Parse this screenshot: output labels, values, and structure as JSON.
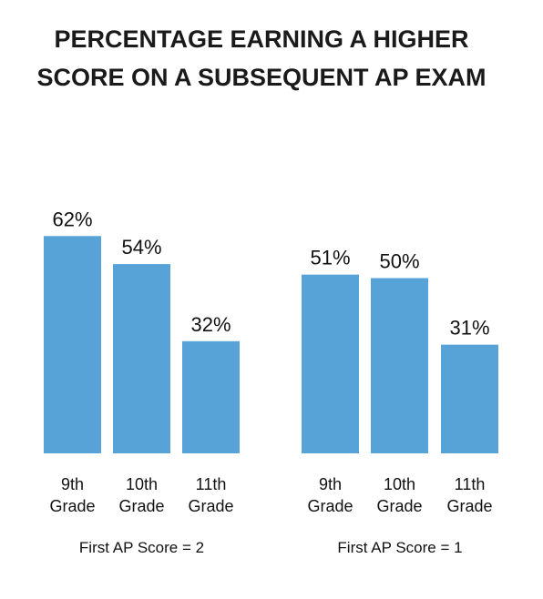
{
  "title": {
    "line1": "PERCENTAGE EARNING A HIGHER",
    "line2": "SCORE ON A SUBSEQUENT AP EXAM"
  },
  "colors": {
    "bar": "#57a3d7",
    "text": "#111111"
  },
  "chart_data": [
    {
      "type": "bar",
      "group_label": "First AP Score = 2",
      "categories": [
        "9th Grade",
        "10th Grade",
        "11th Grade"
      ],
      "values": [
        62,
        54,
        32
      ],
      "value_labels": [
        "62%",
        "54%",
        "32%"
      ],
      "ylim": [
        0,
        100
      ],
      "grid": false
    },
    {
      "type": "bar",
      "group_label": "First AP Score = 1",
      "categories": [
        "9th Grade",
        "10th Grade",
        "11th Grade"
      ],
      "values": [
        51,
        50,
        31
      ],
      "value_labels": [
        "51%",
        "50%",
        "31%"
      ],
      "ylim": [
        0,
        100
      ],
      "grid": false
    }
  ]
}
